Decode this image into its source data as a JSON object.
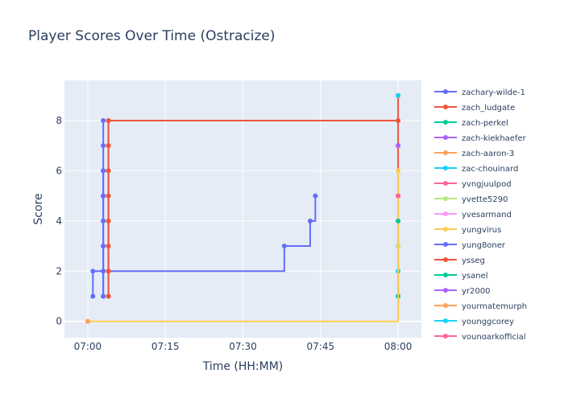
{
  "chart_data": {
    "type": "line",
    "line_shape": "step",
    "title": "Player Scores Over Time (Ostracize)",
    "xlabel": "Time (HH:MM)",
    "ylabel": "Score",
    "x_ticks": [
      "07:00",
      "07:15",
      "07:30",
      "07:45",
      "08:00"
    ],
    "x_tick_minutes": [
      0,
      15,
      30,
      45,
      60
    ],
    "xlim_minutes": [
      -4.5,
      64.5
    ],
    "y_ticks": [
      0,
      2,
      4,
      6,
      8
    ],
    "ylim": [
      -0.65,
      9.6
    ],
    "grid": true,
    "legend_placement": "right",
    "legend_note": "legend list is clipped at the bottom",
    "background": "#e5ecf6",
    "series": [
      {
        "name": "zachary-wilde-1",
        "color": "#636efa",
        "x": [
          "07:01",
          "07:01",
          "07:03",
          "07:03",
          "07:03",
          "07:03",
          "07:03",
          "07:04",
          "07:38",
          "07:43",
          "07:44"
        ],
        "y": [
          1,
          2,
          1,
          3,
          4,
          5,
          6,
          2,
          3,
          4,
          5
        ]
      },
      {
        "name": "zach_ludgate",
        "color": "#ef553b",
        "x": [
          "07:04",
          "07:04",
          "07:04",
          "07:04",
          "07:04",
          "07:04",
          "07:04",
          "07:04",
          "08:00",
          "08:00",
          "08:00",
          "08:00",
          "08:00",
          "08:00",
          "08:00",
          "08:00"
        ],
        "y": [
          1,
          2,
          3,
          4,
          5,
          6,
          7,
          8,
          8,
          1,
          2,
          3,
          4,
          5,
          7,
          9
        ]
      },
      {
        "name": "zach-perkel",
        "color": "#00cc96",
        "x": [
          "08:00"
        ],
        "y": [
          1
        ]
      },
      {
        "name": "zach-kiekhaefer",
        "color": "#ab63fa",
        "x": [
          "08:00"
        ],
        "y": [
          7
        ]
      },
      {
        "name": "zach-aaron-3",
        "color": "#ffa15a",
        "x": [
          "07:00"
        ],
        "y": [
          0
        ]
      },
      {
        "name": "zac-chouinard",
        "color": "#19d3f3",
        "x": [
          "08:00"
        ],
        "y": [
          2
        ]
      },
      {
        "name": "yvngjuulpod",
        "color": "#ff6692",
        "x": [
          "08:00"
        ],
        "y": [
          5
        ]
      },
      {
        "name": "yvette5290",
        "color": "#b6e880",
        "x": [
          "08:00"
        ],
        "y": [
          3
        ]
      },
      {
        "name": "yvesarmand",
        "color": "#ff97ff",
        "x": [
          "08:00"
        ],
        "y": [
          5
        ]
      },
      {
        "name": "yungvirus",
        "color": "#fecb52",
        "x": [
          "07:00",
          "08:00"
        ],
        "y": [
          0,
          6
        ]
      },
      {
        "name": "yung8oner",
        "color": "#636efa",
        "x": [
          "07:03",
          "07:03",
          "07:03",
          "07:03",
          "07:03",
          "07:03",
          "07:03",
          "07:03"
        ],
        "y": [
          1,
          2,
          3,
          4,
          5,
          6,
          7,
          8
        ]
      },
      {
        "name": "ysseg",
        "color": "#ef553b",
        "x": [
          "07:04",
          "07:04",
          "07:04",
          "07:04",
          "07:04",
          "07:04",
          "07:04",
          "07:04"
        ],
        "y": [
          1,
          2,
          3,
          4,
          5,
          6,
          7,
          8
        ]
      },
      {
        "name": "ysanel",
        "color": "#00cc96",
        "x": [
          "08:00"
        ],
        "y": [
          4
        ]
      },
      {
        "name": "yr2000",
        "color": "#ab63fa",
        "x": [
          "08:00"
        ],
        "y": [
          7
        ]
      },
      {
        "name": "yourmatemurph",
        "color": "#ffa15a",
        "x": [
          "07:00"
        ],
        "y": [
          0
        ]
      },
      {
        "name": "younggcorey",
        "color": "#19d3f3",
        "x": [
          "08:00"
        ],
        "y": [
          9
        ]
      },
      {
        "name": "youngarkofficial",
        "color": "#ff6692",
        "x": [
          "08:00"
        ],
        "y": [
          5
        ]
      }
    ]
  }
}
